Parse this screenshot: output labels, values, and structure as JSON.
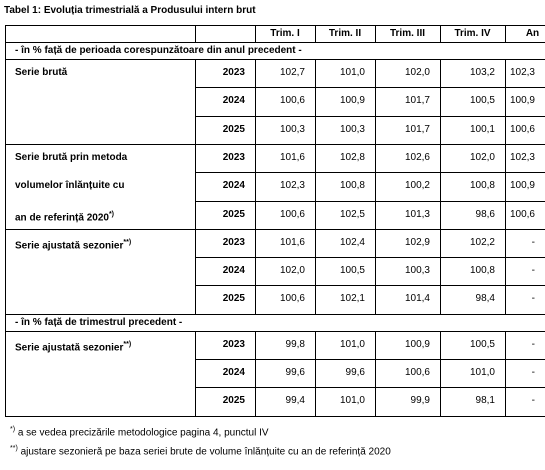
{
  "title": "Tabel 1: Evoluția trimestrială a Produsului intern brut",
  "table": {
    "columns": [
      "Trim. I",
      "Trim. II",
      "Trim. III",
      "Trim. IV",
      "An"
    ],
    "sections": [
      {
        "heading": "- în % față de perioada corespunzătoare din anul precedent -",
        "groups": [
          {
            "label": [
              "Serie brută"
            ],
            "rows": [
              {
                "year": "2023",
                "values": [
                  "102,7",
                  "101,0",
                  "102,0",
                  "103,2",
                  "102,3"
                ]
              },
              {
                "year": "2024",
                "values": [
                  "100,6",
                  "100,9",
                  "101,7",
                  "100,5",
                  "100,9"
                ]
              },
              {
                "year": "2025",
                "values": [
                  "100,3",
                  "100,3",
                  "101,7",
                  "100,1",
                  "100,6"
                ]
              }
            ]
          },
          {
            "label": [
              "Serie brută prin metoda",
              "volumelor înlănțuite cu",
              "an de referință 2020"
            ],
            "note": "*)",
            "rows": [
              {
                "year": "2023",
                "values": [
                  "101,6",
                  "102,8",
                  "102,6",
                  "102,0",
                  "102,3"
                ]
              },
              {
                "year": "2024",
                "values": [
                  "102,3",
                  "100,8",
                  "100,2",
                  "100,8",
                  "100,9"
                ]
              },
              {
                "year": "2025",
                "values": [
                  "100,6",
                  "102,5",
                  "101,3",
                  "98,6",
                  "100,6"
                ]
              }
            ]
          },
          {
            "label": [
              "Serie ajustată sezonier"
            ],
            "note": "**)",
            "rows": [
              {
                "year": "2023",
                "values": [
                  "101,6",
                  "102,4",
                  "102,9",
                  "102,2",
                  "-"
                ]
              },
              {
                "year": "2024",
                "values": [
                  "102,0",
                  "100,5",
                  "100,3",
                  "100,8",
                  "-"
                ]
              },
              {
                "year": "2025",
                "values": [
                  "100,6",
                  "102,1",
                  "101,4",
                  "98,4",
                  "-"
                ]
              }
            ]
          }
        ]
      },
      {
        "heading": "- în % față de trimestrul precedent -",
        "groups": [
          {
            "label": [
              "Serie ajustată sezonier"
            ],
            "note": "**)",
            "rows": [
              {
                "year": "2023",
                "values": [
                  "99,8",
                  "101,0",
                  "100,9",
                  "100,5",
                  "-"
                ]
              },
              {
                "year": "2024",
                "values": [
                  "99,6",
                  "99,6",
                  "100,6",
                  "101,0",
                  "-"
                ]
              },
              {
                "year": "2025",
                "values": [
                  "99,4",
                  "101,0",
                  "99,9",
                  "98,1",
                  "-"
                ]
              }
            ]
          }
        ]
      }
    ]
  },
  "footnotes": [
    {
      "mark": "*)",
      "text": "a se vedea precizările metodologice pagina 4, punctul IV"
    },
    {
      "mark": "**)",
      "text": "ajustare sezonieră pe baza seriei brute de volume înlănțuite cu an de referință 2020"
    }
  ]
}
